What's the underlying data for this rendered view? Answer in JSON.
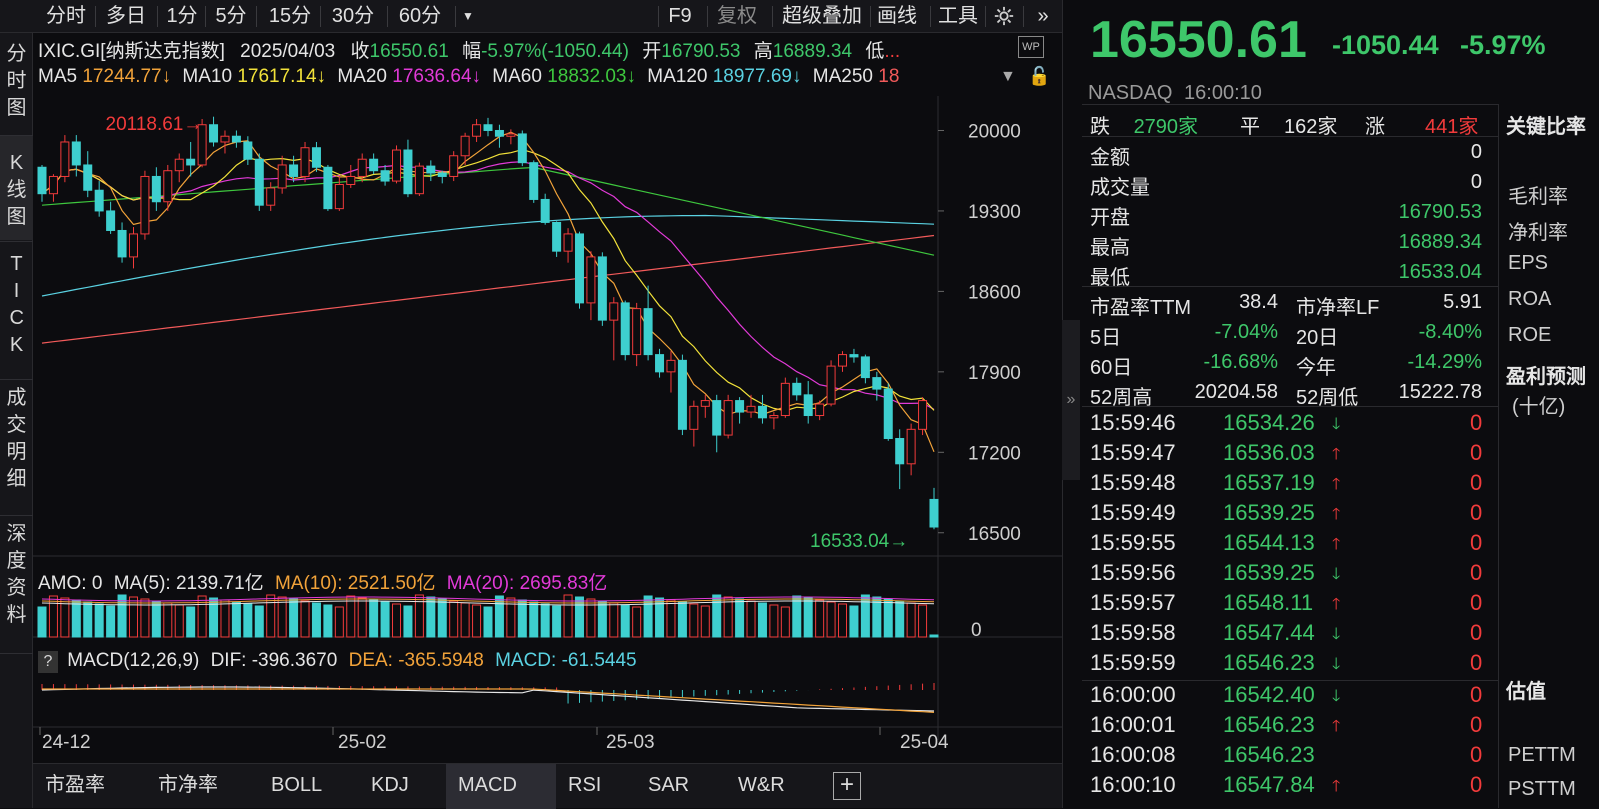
{
  "toolbar": {
    "tabs": [
      "分时",
      "多日",
      "1分",
      "5分",
      "15分",
      "30分",
      "60分"
    ],
    "dropdown_icon": "caret-down-icon",
    "right_items": [
      "F9",
      "复权",
      "超级叠加",
      "画线",
      "工具"
    ],
    "gear": "gear-icon",
    "expand": "double-chevron-right-icon"
  },
  "leftnav": {
    "items": [
      "分时图",
      "K线图",
      "TICK",
      "成交明细",
      "深度资料"
    ]
  },
  "info": {
    "symbol": "IXIC.GI[纳斯达克指数]",
    "date": "2025/04/03",
    "close_label": "收",
    "close": "16550.61",
    "range_label": "幅",
    "range": "-5.97%(-1050.44)",
    "open_label": "开",
    "open": "16790.53",
    "high_label": "高",
    "high": "16889.34",
    "low_label": "低",
    "low_trunc": "..."
  },
  "ma": {
    "ma5_label": "MA5",
    "ma5": "17244.77↓",
    "ma10_label": "MA10",
    "ma10": "17617.14↓",
    "ma20_label": "MA20",
    "ma20": "17636.64↓",
    "ma60_label": "MA60",
    "ma60": "18832.03↓",
    "ma120_label": "MA120",
    "ma120": "18977.69↓",
    "ma250_label": "MA250",
    "ma250": "18"
  },
  "amo": {
    "label": "AMO: 0",
    "ma5": "MA(5): 2139.71亿",
    "ma10": "MA(10): 2521.50亿",
    "ma20": "MA(20): 2695.83亿",
    "zero": "0"
  },
  "macd": {
    "help": "?",
    "label": "MACD(12,26,9)",
    "dif": "DIF: -396.3670",
    "dea": "DEA: -365.5948",
    "macd": "MACD: -61.5445"
  },
  "xaxis": [
    "24-12",
    "25-02",
    "25-03",
    "25-04"
  ],
  "bottom_tabs": [
    "市盈率",
    "市净率",
    "BOLL",
    "KDJ",
    "MACD",
    "RSI",
    "SAR",
    "W&R"
  ],
  "bottom_active": "MACD",
  "quote": {
    "price": "16550.61",
    "change": "-1050.44",
    "change_pct": "-5.97%",
    "exchange": "NASDAQ",
    "time": "16:00:10",
    "fall_label": "跌",
    "fall": "2790家",
    "flat_label": "平",
    "flat": "162家",
    "rise_label": "涨",
    "rise": "441家",
    "fields": [
      {
        "label": "金额",
        "value": "0"
      },
      {
        "label": "成交量",
        "value": "0"
      },
      {
        "label": "开盘",
        "value": "16790.53"
      },
      {
        "label": "最高",
        "value": "16889.34"
      },
      {
        "label": "最低",
        "value": "16533.04"
      }
    ],
    "pe_label": "市盈率TTM",
    "pe": "38.4",
    "pb_label": "市净率LF",
    "pb": "5.91",
    "perf": [
      {
        "l1": "5日",
        "v1": "-7.04%",
        "l2": "20日",
        "v2": "-8.40%"
      },
      {
        "l1": "60日",
        "v1": "-16.68%",
        "l2": "今年",
        "v2": "-14.29%"
      }
    ],
    "wk52h_label": "52周高",
    "wk52h": "20204.58",
    "wk52l_label": "52周低",
    "wk52l": "15222.78"
  },
  "ticks": [
    {
      "t": "15:59:46",
      "p": "16534.26",
      "d": "down",
      "v": "0"
    },
    {
      "t": "15:59:47",
      "p": "16536.03",
      "d": "up",
      "v": "0"
    },
    {
      "t": "15:59:48",
      "p": "16537.19",
      "d": "up",
      "v": "0"
    },
    {
      "t": "15:59:49",
      "p": "16539.25",
      "d": "up",
      "v": "0"
    },
    {
      "t": "15:59:55",
      "p": "16544.13",
      "d": "up",
      "v": "0"
    },
    {
      "t": "15:59:56",
      "p": "16539.25",
      "d": "down",
      "v": "0"
    },
    {
      "t": "15:59:57",
      "p": "16548.11",
      "d": "up",
      "v": "0"
    },
    {
      "t": "15:59:58",
      "p": "16547.44",
      "d": "down",
      "v": "0"
    },
    {
      "t": "15:59:59",
      "p": "16546.23",
      "d": "down",
      "v": "0"
    },
    {
      "t": "16:00:00",
      "p": "16542.40",
      "d": "down",
      "v": "0"
    },
    {
      "t": "16:00:01",
      "p": "16546.23",
      "d": "up",
      "v": "0"
    },
    {
      "t": "16:00:08",
      "p": "16546.23",
      "d": "",
      "v": "0"
    },
    {
      "t": "16:00:10",
      "p": "16547.84",
      "d": "up",
      "v": "0"
    }
  ],
  "ratios": {
    "h1": "关键比率",
    "items": [
      "毛利率",
      "净利率",
      "EPS",
      "ROA",
      "ROE"
    ],
    "h2": "盈利预测",
    "unit": "(十亿)",
    "h3": "估值",
    "items2": [
      "PETTM",
      "PSTTM"
    ]
  },
  "chart_data": {
    "type": "candlestick",
    "ylabels": [
      "20000",
      "19300",
      "18600",
      "17900",
      "17200",
      "16500"
    ],
    "ylim": [
      16350,
      20300
    ],
    "annot_high": "20118.61",
    "annot_low": "16533.04",
    "colors": {
      "up": "#f23b3b",
      "down": "#3ecfcf",
      "ma5": "#f2a33a",
      "ma10": "#f2e23a",
      "ma20": "#e23ad8",
      "ma60": "#3ec73e",
      "ma120": "#5ad2e2",
      "ma250": "#f25a5a"
    },
    "candles": [
      [
        19680,
        19700,
        19380,
        19450
      ],
      [
        19450,
        19620,
        19380,
        19600
      ],
      [
        19600,
        19960,
        19550,
        19900
      ],
      [
        19900,
        19960,
        19600,
        19700
      ],
      [
        19700,
        19820,
        19420,
        19480
      ],
      [
        19480,
        19560,
        19250,
        19300
      ],
      [
        19300,
        19380,
        19100,
        19130
      ],
      [
        19130,
        19200,
        18850,
        18900
      ],
      [
        18900,
        19160,
        18800,
        19100
      ],
      [
        19100,
        19650,
        19050,
        19600
      ],
      [
        19600,
        19680,
        19300,
        19380
      ],
      [
        19380,
        19700,
        19300,
        19650
      ],
      [
        19650,
        19800,
        19550,
        19750
      ],
      [
        19750,
        19900,
        19600,
        19700
      ],
      [
        19700,
        20100,
        19680,
        20050
      ],
      [
        20050,
        20120,
        19860,
        19900
      ],
      [
        19900,
        20000,
        19800,
        19950
      ],
      [
        19950,
        20000,
        19850,
        19900
      ],
      [
        19900,
        19950,
        19700,
        19750
      ],
      [
        19750,
        19800,
        19300,
        19350
      ],
      [
        19350,
        19550,
        19300,
        19500
      ],
      [
        19500,
        19780,
        19450,
        19700
      ],
      [
        19700,
        19780,
        19550,
        19600
      ],
      [
        19600,
        19900,
        19550,
        19850
      ],
      [
        19850,
        19900,
        19640,
        19680
      ],
      [
        19680,
        19700,
        19300,
        19320
      ],
      [
        19320,
        19600,
        19300,
        19530
      ],
      [
        19530,
        19700,
        19500,
        19600
      ],
      [
        19600,
        19800,
        19550,
        19750
      ],
      [
        19750,
        19800,
        19620,
        19650
      ],
      [
        19650,
        19700,
        19520,
        19560
      ],
      [
        19560,
        19870,
        19540,
        19830
      ],
      [
        19830,
        19920,
        19420,
        19450
      ],
      [
        19450,
        19720,
        19430,
        19690
      ],
      [
        19690,
        19740,
        19560,
        19630
      ],
      [
        19630,
        19650,
        19540,
        19600
      ],
      [
        19600,
        19820,
        19560,
        19780
      ],
      [
        19780,
        19980,
        19700,
        19950
      ],
      [
        19950,
        20100,
        19900,
        20050
      ],
      [
        20050,
        20110,
        19950,
        20000
      ],
      [
        20000,
        20050,
        19850,
        19950
      ],
      [
        19950,
        20010,
        19880,
        19970
      ],
      [
        19970,
        20000,
        19690,
        19720
      ],
      [
        19720,
        19740,
        19370,
        19400
      ],
      [
        19400,
        19450,
        19180,
        19200
      ],
      [
        19200,
        19210,
        18900,
        18950
      ],
      [
        18950,
        19150,
        18850,
        19100
      ],
      [
        19100,
        19120,
        18450,
        18500
      ],
      [
        18500,
        18950,
        18350,
        18900
      ],
      [
        18900,
        18940,
        18300,
        18350
      ],
      [
        18350,
        18550,
        18000,
        18500
      ],
      [
        18500,
        18520,
        18000,
        18050
      ],
      [
        18050,
        18500,
        17950,
        18450
      ],
      [
        18450,
        18650,
        18000,
        18050
      ],
      [
        18050,
        18100,
        17850,
        17900
      ],
      [
        17900,
        18080,
        17720,
        18000
      ],
      [
        18000,
        18050,
        17350,
        17400
      ],
      [
        17400,
        17650,
        17250,
        17600
      ],
      [
        17600,
        17700,
        17500,
        17650
      ],
      [
        17650,
        17700,
        17200,
        17350
      ],
      [
        17350,
        17700,
        17320,
        17650
      ],
      [
        17650,
        17680,
        17450,
        17550
      ],
      [
        17550,
        17700,
        17500,
        17600
      ],
      [
        17600,
        17700,
        17450,
        17500
      ],
      [
        17500,
        17550,
        17400,
        17520
      ],
      [
        17520,
        17850,
        17500,
        17800
      ],
      [
        17800,
        17850,
        17650,
        17700
      ],
      [
        17700,
        17820,
        17450,
        17520
      ],
      [
        17520,
        17650,
        17480,
        17620
      ],
      [
        17620,
        18000,
        17600,
        17950
      ],
      [
        17950,
        18080,
        17900,
        18050
      ],
      [
        18050,
        18100,
        17980,
        18030
      ],
      [
        18030,
        18050,
        17800,
        17850
      ],
      [
        17850,
        17900,
        17650,
        17750
      ],
      [
        17750,
        17800,
        17300,
        17320
      ],
      [
        17320,
        17400,
        16880,
        17100
      ],
      [
        17100,
        17450,
        17000,
        17400
      ],
      [
        17400,
        17680,
        17350,
        17650
      ],
      [
        16790,
        16890,
        16530,
        16550
      ]
    ]
  }
}
